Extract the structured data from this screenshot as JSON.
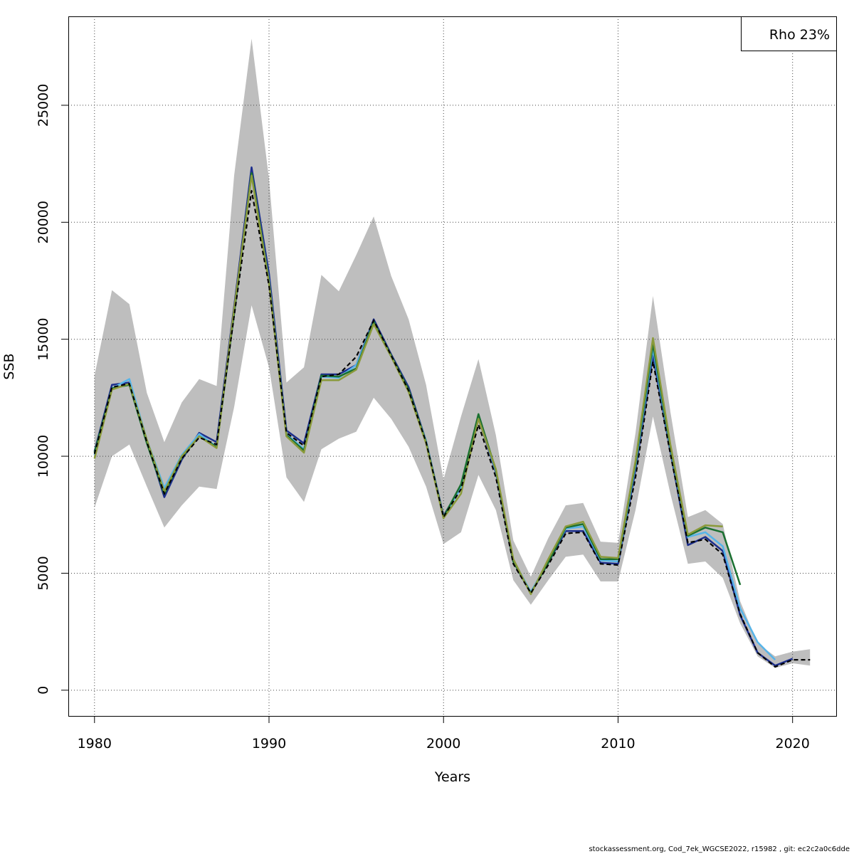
{
  "chart_data": {
    "type": "line",
    "xlabel": "Years",
    "ylabel": "SSB",
    "xlim": [
      1978.5,
      2022.5
    ],
    "ylim": [
      -1100,
      28800
    ],
    "x_ticks": [
      1980,
      1990,
      2000,
      2010,
      2020
    ],
    "y_ticks": [
      0,
      5000,
      10000,
      15000,
      20000,
      25000
    ],
    "grid": true,
    "legend_text": "Rho 23%",
    "legend_placement": "top-right",
    "confidence_band": {
      "color": "#bebebe",
      "x": [
        1980,
        1981,
        1982,
        1983,
        1984,
        1985,
        1986,
        1987,
        1988,
        1989,
        1990,
        1991,
        1992,
        1993,
        1994,
        1995,
        1996,
        1997,
        1998,
        1999,
        2000,
        2001,
        2002,
        2003,
        2004,
        2005,
        2006,
        2007,
        2008,
        2009,
        2010,
        2011,
        2012,
        2013,
        2014,
        2015,
        2016,
        2017,
        2018,
        2019,
        2020,
        2021
      ],
      "lower": [
        7800,
        10000,
        10500,
        8700,
        6950,
        7900,
        8700,
        8600,
        12100,
        16450,
        13800,
        9100,
        8050,
        10300,
        10750,
        11050,
        12500,
        11600,
        10400,
        8700,
        6250,
        6750,
        9200,
        7700,
        4700,
        3650,
        4700,
        5700,
        5800,
        4650,
        4650,
        7700,
        11700,
        8400,
        5400,
        5500,
        4800,
        2850,
        1450,
        950,
        1150,
        1050
      ],
      "upper": [
        13450,
        17100,
        16500,
        12700,
        10600,
        12300,
        13300,
        13000,
        22000,
        27850,
        21850,
        13150,
        13800,
        17750,
        17050,
        18600,
        20250,
        17700,
        15850,
        13050,
        9000,
        11700,
        14150,
        10900,
        6400,
        4850,
        6500,
        7900,
        8000,
        6350,
        6300,
        11000,
        16850,
        11900,
        7400,
        7700,
        7100,
        3800,
        2000,
        1450,
        1650,
        1750
      ]
    },
    "series": [
      {
        "color": "#000000",
        "dashed": true,
        "x": [
          1980,
          1981,
          1982,
          1983,
          1984,
          1985,
          1986,
          1987,
          1988,
          1989,
          1990,
          1991,
          1992,
          1993,
          1994,
          1995,
          1996,
          1997,
          1998,
          1999,
          2000,
          2001,
          2002,
          2003,
          2004,
          2005,
          2006,
          2007,
          2008,
          2009,
          2010,
          2011,
          2012,
          2013,
          2014,
          2015,
          2016,
          2017,
          2018,
          2019,
          2020,
          2021
        ],
        "y": [
          10100,
          12950,
          13100,
          10600,
          8400,
          9900,
          10800,
          10500,
          16000,
          21350,
          17300,
          11000,
          10450,
          13400,
          13500,
          14250,
          15800,
          14300,
          12800,
          10600,
          7400,
          8600,
          11350,
          9100,
          5400,
          4150,
          5350,
          6700,
          6750,
          5400,
          5350,
          9100,
          14050,
          10100,
          6300,
          6450,
          5800,
          3250,
          1600,
          1000,
          1300,
          1300
        ]
      },
      {
        "color": "#1c2e8c",
        "dashed": false,
        "x": [
          1980,
          1981,
          1982,
          1983,
          1984,
          1985,
          1986,
          1987,
          1988,
          1989,
          1990,
          1991,
          1992,
          1993,
          1994,
          1995,
          1996,
          1997,
          1998,
          1999,
          2000,
          2001,
          2002,
          2003,
          2004,
          2005,
          2006,
          2007,
          2008,
          2009,
          2010,
          2011,
          2012,
          2013,
          2014,
          2015,
          2016,
          2017,
          2018,
          2019,
          2020
        ],
        "y": [
          10200,
          13050,
          13150,
          10650,
          8250,
          9850,
          11000,
          10600,
          16400,
          22350,
          17800,
          11100,
          10550,
          13500,
          13500,
          13900,
          15850,
          14350,
          12950,
          10650,
          7450,
          8700,
          11650,
          9300,
          5500,
          4150,
          5450,
          6800,
          6800,
          5450,
          5400,
          9400,
          14300,
          10200,
          6200,
          6550,
          5950,
          3200,
          1600,
          1050,
          1350
        ]
      },
      {
        "color": "#56b4e9",
        "dashed": false,
        "x": [
          1980,
          1981,
          1982,
          1983,
          1984,
          1985,
          1986,
          1987,
          1988,
          1989,
          1990,
          1991,
          1992,
          1993,
          1994,
          1995,
          1996,
          1997,
          1998,
          1999,
          2000,
          2001,
          2002,
          2003,
          2004,
          2005,
          2006,
          2007,
          2008,
          2009,
          2010,
          2011,
          2012,
          2013,
          2014,
          2015,
          2016,
          2017,
          2018,
          2019
        ],
        "y": [
          10050,
          12900,
          13300,
          10700,
          8650,
          10050,
          10950,
          10400,
          16200,
          22050,
          17500,
          10950,
          10300,
          13400,
          13350,
          13900,
          15750,
          14250,
          12800,
          10650,
          7400,
          8650,
          11700,
          9350,
          5550,
          4200,
          5500,
          6900,
          7000,
          5550,
          5500,
          9600,
          14600,
          10300,
          6550,
          6750,
          6150,
          3500,
          2050,
          1300
        ]
      },
      {
        "color": "#1a7030",
        "dashed": false,
        "x": [
          1980,
          1981,
          1982,
          1983,
          1984,
          1985,
          1986,
          1987,
          1988,
          1989,
          1990,
          1991,
          1992,
          1993,
          1994,
          1995,
          1996,
          1997,
          1998,
          1999,
          2000,
          2001,
          2002,
          2003,
          2004,
          2005,
          2006,
          2007,
          2008,
          2009,
          2010,
          2011,
          2012,
          2013,
          2014,
          2015,
          2016,
          2017
        ],
        "y": [
          10150,
          12900,
          13050,
          10550,
          8400,
          9950,
          10850,
          10400,
          16100,
          22100,
          17450,
          10900,
          10250,
          13450,
          13400,
          13750,
          15750,
          14300,
          12850,
          10600,
          7400,
          8800,
          11800,
          9400,
          5500,
          4150,
          5450,
          6950,
          7100,
          5600,
          5600,
          9700,
          14800,
          10400,
          6600,
          6950,
          6750,
          4500
        ]
      },
      {
        "color": "#8a9a3a",
        "dashed": false,
        "x": [
          1980,
          1981,
          1982,
          1983,
          1984,
          1985,
          1986,
          1987,
          1988,
          1989,
          1990,
          1991,
          1992,
          1993,
          1994,
          1995,
          1996,
          1997,
          1998,
          1999,
          2000,
          2001,
          2002,
          2003,
          2004,
          2005,
          2006,
          2007,
          2008,
          2009,
          2010,
          2011,
          2012,
          2013,
          2014,
          2015,
          2016
        ],
        "y": [
          9900,
          12850,
          13100,
          10700,
          8500,
          10000,
          10850,
          10350,
          16300,
          22000,
          17400,
          10850,
          10150,
          13250,
          13250,
          13700,
          15650,
          14250,
          12750,
          10550,
          7350,
          8400,
          11600,
          9450,
          5600,
          4100,
          5600,
          7000,
          7200,
          5700,
          5650,
          9800,
          15050,
          10500,
          6650,
          7050,
          7000
        ]
      }
    ]
  },
  "footer_text": "stockassessment.org, Cod_7ek_WGCSE2022, r15982 , git: ec2c2a0c6dde"
}
